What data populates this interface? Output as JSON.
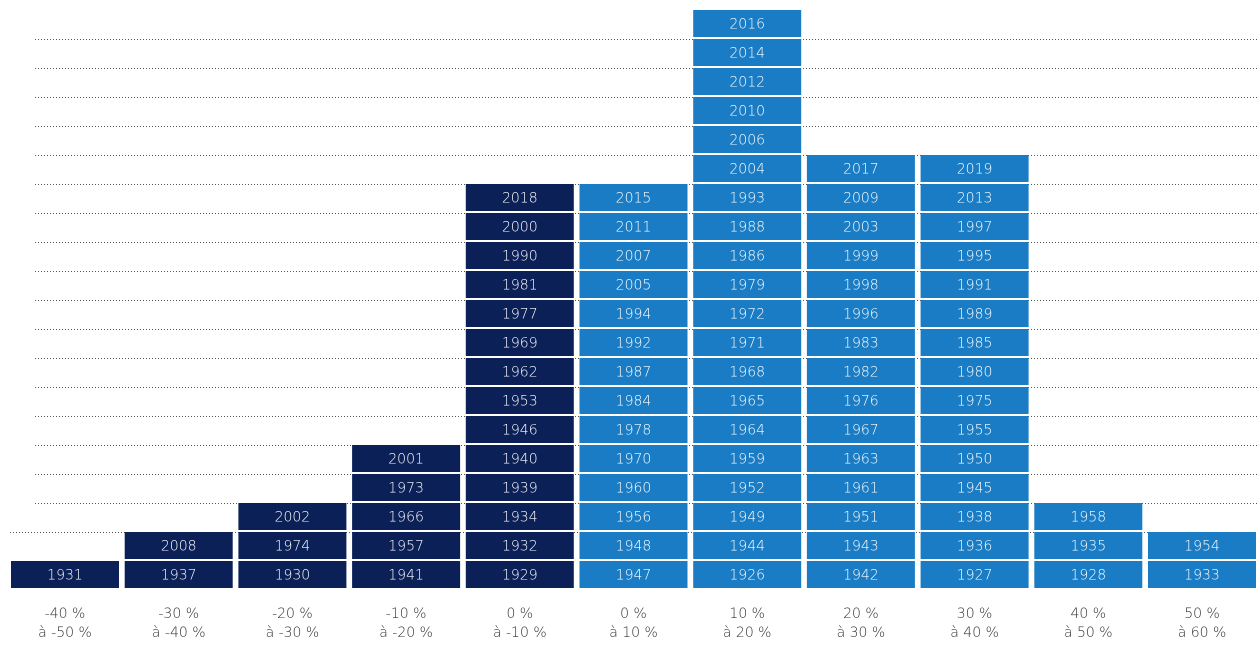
{
  "chart_data": {
    "type": "year-histogram",
    "columns": [
      {
        "label": [
          "-40 %",
          "à -50 %"
        ],
        "color": "#0c2058",
        "years": [
          1931
        ]
      },
      {
        "label": [
          "-30 %",
          "à -40 %"
        ],
        "color": "#0c2058",
        "years": [
          1937,
          2008
        ]
      },
      {
        "label": [
          "-20 %",
          "à -30 %"
        ],
        "color": "#0c2058",
        "years": [
          1930,
          1974,
          2002
        ]
      },
      {
        "label": [
          "-10 %",
          "à -20 %"
        ],
        "color": "#0c2058",
        "years": [
          1941,
          1957,
          1966,
          1973,
          2001
        ]
      },
      {
        "label": [
          "0 %",
          "à -10 %"
        ],
        "color": "#0c2058",
        "years": [
          1929,
          1932,
          1934,
          1939,
          1940,
          1946,
          1953,
          1962,
          1969,
          1977,
          1981,
          1990,
          2000,
          2018
        ]
      },
      {
        "label": [
          "0 %",
          "à 10 %"
        ],
        "color": "#1a7cc4",
        "years": [
          1947,
          1948,
          1956,
          1960,
          1970,
          1978,
          1984,
          1987,
          1992,
          1994,
          2005,
          2007,
          2011,
          2015
        ]
      },
      {
        "label": [
          "10 %",
          "à 20 %"
        ],
        "color": "#1a7cc4",
        "years": [
          1926,
          1944,
          1949,
          1952,
          1959,
          1964,
          1965,
          1968,
          1971,
          1972,
          1979,
          1986,
          1988,
          1993,
          2004,
          2006,
          2010,
          2012,
          2014,
          2016
        ]
      },
      {
        "label": [
          "20 %",
          "à 30 %"
        ],
        "color": "#1a7cc4",
        "years": [
          1942,
          1943,
          1951,
          1961,
          1963,
          1967,
          1976,
          1982,
          1983,
          1996,
          1998,
          1999,
          2003,
          2009,
          2017
        ]
      },
      {
        "label": [
          "30 %",
          "à 40 %"
        ],
        "color": "#1a7cc4",
        "years": [
          1927,
          1936,
          1938,
          1945,
          1950,
          1955,
          1975,
          1980,
          1985,
          1989,
          1991,
          1995,
          1997,
          2013,
          2019
        ]
      },
      {
        "label": [
          "40 %",
          "à 50 %"
        ],
        "color": "#1a7cc4",
        "years": [
          1928,
          1935,
          1958
        ]
      },
      {
        "label": [
          "50 %",
          "à 60 %"
        ],
        "color": "#1a7cc4",
        "years": [
          1933,
          1954
        ]
      }
    ]
  }
}
